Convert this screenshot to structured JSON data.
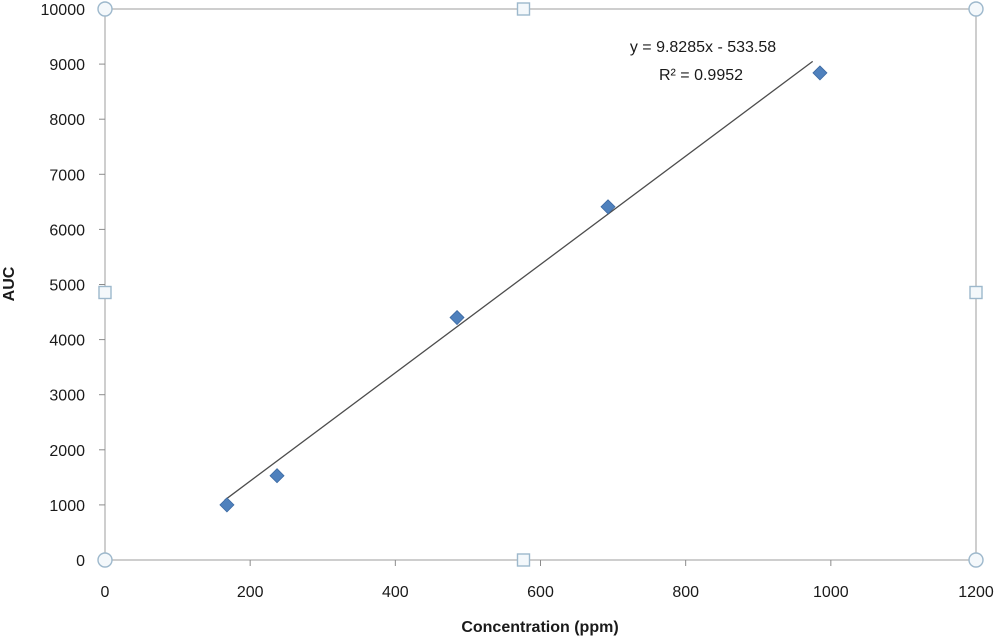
{
  "chart_data": {
    "type": "scatter",
    "xlabel": "Concentration  (ppm)",
    "ylabel": "AUC",
    "xlim": [
      0,
      1200
    ],
    "ylim": [
      0,
      10000
    ],
    "x_ticks": [
      0,
      200,
      400,
      600,
      800,
      1000,
      1200
    ],
    "y_ticks": [
      0,
      1000,
      2000,
      3000,
      4000,
      5000,
      6000,
      7000,
      8000,
      9000,
      10000
    ],
    "x_tick_labels": [
      "0",
      "200",
      "400",
      "600",
      "800",
      "1000",
      "1200"
    ],
    "y_tick_labels": [
      "0",
      "1000",
      "2000",
      "3000",
      "4000",
      "5000",
      "6000",
      "7000",
      "8000",
      "9000",
      "10000"
    ],
    "grid": false,
    "series": [
      {
        "marker": "diamond",
        "color": "#4f81bd",
        "points": [
          {
            "x": 168,
            "y": 1000
          },
          {
            "x": 237,
            "y": 1530
          },
          {
            "x": 485,
            "y": 4400
          },
          {
            "x": 693,
            "y": 6410
          },
          {
            "x": 985,
            "y": 8840
          }
        ]
      }
    ],
    "trendline": {
      "slope": 9.8285,
      "intercept": -533.58,
      "x_range": [
        165,
        975
      ],
      "color": "#4d4d4d",
      "equation_label": "y = 9.8285x - 533.58",
      "r2_label": "R² = 0.9952"
    },
    "frame_color": "#b3b3b3",
    "selection_handle_color": "#9db8cc"
  }
}
